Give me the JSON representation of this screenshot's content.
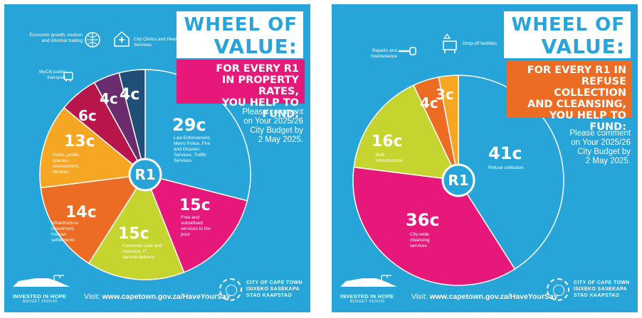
{
  "left_panel": {
    "title_line1": "WHEEL OF",
    "title_line2": "VALUE:",
    "fund_line1": "FOR EVERY R1",
    "fund_line2": "IN PROPERTY RATES,",
    "fund_line3": "YOU HELP TO FUND:",
    "comment": [
      "Please comment",
      "on Your 2025/26",
      "City Budget  by",
      "2 May 2025."
    ],
    "center_label": "R1",
    "segments": [
      {
        "value": "29c",
        "label": "Law Enforcement, Metro Police, Fire and Disaster Services, Traffic Services",
        "color": "#27a4d8",
        "icon": "siren-icon"
      },
      {
        "value": "15c",
        "label": "Free and subsidised services to the poor",
        "color": "#e6197a",
        "icon": "heart-icon"
      },
      {
        "value": "15c",
        "label": "Customer care and inclusion, IT, service delivery",
        "color": "#c6d42f",
        "icon": "heart-hand-icon"
      },
      {
        "value": "14c",
        "label": "Infrastructure investment, Human settlements",
        "color": "#ec6c23",
        "icon": "crane-icon"
      },
      {
        "value": "13c",
        "label": "Parks, public spaces, environment, libraries",
        "color": "#f5a623",
        "icon": "tree-icon"
      },
      {
        "value": "6c",
        "label": "MyCiti public transport",
        "color": "#b8164a",
        "icon": "bus-icon"
      },
      {
        "value": "4c",
        "label": "Economic growth, tourism and informal trading",
        "color": "#6b2c6e",
        "icon": "growth-icon"
      },
      {
        "value": "4c",
        "label": "City Clinics and Health Services",
        "color": "#1f4e79",
        "icon": "clinic-icon"
      }
    ],
    "callouts": {
      "myciti": "MyCiti public transport",
      "economic": "Economic growth, tourism and informal trading",
      "clinics": "City Clinics and Health Services"
    }
  },
  "right_panel": {
    "title_line1": "WHEEL OF",
    "title_line2": "VALUE:",
    "fund_line1": "FOR EVERY R1 IN",
    "fund_line2": "REFUSE COLLECTION",
    "fund_line3": "AND CLEANSING,",
    "fund_line4": "YOU HELP TO FUND:",
    "comment": [
      "Please comment",
      "on Your 2025/26",
      "City Budget  by",
      "2 May 2025."
    ],
    "center_label": "R1",
    "segments": [
      {
        "value": "41c",
        "label": "Refuse collection",
        "color": "#27a4d8",
        "icon": "truck-icon"
      },
      {
        "value": "36c",
        "label": "City-wide cleansing services",
        "color": "#e6197a",
        "icon": "sweeper-icon"
      },
      {
        "value": "16c",
        "label": "Bulk infrastructure",
        "color": "#c6d42f",
        "icon": "crane-icon"
      },
      {
        "value": "4c",
        "label": "Repairs and maintenance",
        "color": "#ec6c23",
        "icon": "wrench-icon"
      },
      {
        "value": "3c",
        "label": "Drop-off facilities",
        "color": "#f5a623",
        "icon": "recycle-icon"
      }
    ],
    "callouts": {
      "repairs": "Repairs and maintenance",
      "dropoff": "Drop-off facilities"
    }
  },
  "footer": {
    "visit_prefix": "Visit:",
    "visit_url": "www.capetown.gov.za/HaveYourSay",
    "city_line1": "CITY OF CAPE TOWN",
    "city_line2": "ISIXEKO SASEKAPA",
    "city_line3": "STAD KAAPSTAD",
    "hope_title": "INVESTED IN HOPE",
    "hope_sub": "BUDGET 2025/26"
  }
}
